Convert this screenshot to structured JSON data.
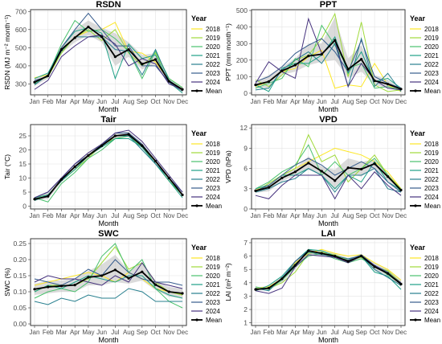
{
  "colors": {
    "2018": "#FDE725",
    "2019": "#9FDA3A",
    "2020": "#4AC16D",
    "2021": "#1FA187",
    "2022": "#277F8E",
    "2023": "#365C8D",
    "2024": "#46327E",
    "mean": "#000000",
    "band": "#BEBEBE"
  },
  "chart_data": [
    {
      "type": "line",
      "title": "RSDN",
      "xlabel": "Month",
      "ylabel": "RSDN (MJ m⁻² month⁻¹)",
      "categories": [
        "Jan",
        "Feb",
        "Mar",
        "Apr",
        "May",
        "Jun",
        "Jul",
        "Aug",
        "Sep",
        "Oct",
        "Nov",
        "Dec"
      ],
      "ylim": [
        240,
        710
      ],
      "yticks": [
        300,
        400,
        500,
        600,
        700
      ],
      "legend_title": "Year",
      "series": [
        {
          "name": "2018",
          "values": [
            335,
            350,
            480,
            560,
            590,
            600,
            640,
            480,
            470,
            420,
            320,
            260
          ]
        },
        {
          "name": "2019",
          "values": [
            310,
            340,
            470,
            560,
            600,
            540,
            600,
            470,
            400,
            470,
            330,
            280
          ]
        },
        {
          "name": "2020",
          "values": [
            300,
            350,
            520,
            650,
            590,
            600,
            550,
            480,
            330,
            480,
            330,
            280
          ]
        },
        {
          "name": "2021",
          "values": [
            330,
            360,
            500,
            590,
            610,
            580,
            330,
            520,
            440,
            460,
            310,
            250
          ]
        },
        {
          "name": "2022",
          "values": [
            295,
            350,
            480,
            560,
            560,
            560,
            490,
            480,
            350,
            490,
            320,
            270
          ]
        },
        {
          "name": "2023",
          "values": [
            320,
            340,
            500,
            600,
            690,
            600,
            510,
            510,
            400,
            400,
            310,
            260
          ]
        },
        {
          "name": "2024",
          "values": [
            270,
            320,
            450,
            510,
            560,
            570,
            520,
            400,
            440,
            410,
            300,
            270
          ]
        },
        {
          "name": "Mean",
          "values": [
            310,
            345,
            490,
            555,
            615,
            560,
            450,
            490,
            410,
            435,
            315,
            270
          ],
          "lower": [
            290,
            330,
            470,
            530,
            570,
            530,
            400,
            450,
            380,
            410,
            305,
            260
          ],
          "upper": [
            330,
            360,
            510,
            600,
            650,
            610,
            580,
            530,
            460,
            470,
            325,
            285
          ]
        }
      ]
    },
    {
      "type": "line",
      "title": "PPT",
      "xlabel": "Month",
      "ylabel": "PPT (mm month⁻¹)",
      "categories": [
        "Jan",
        "Feb",
        "Mar",
        "Apr",
        "May",
        "Jun",
        "Jul",
        "Aug",
        "Sep",
        "Oct",
        "Nov",
        "Dec"
      ],
      "ylim": [
        -10,
        505
      ],
      "yticks": [
        0,
        100,
        200,
        300,
        400,
        500
      ],
      "legend_title": "Year",
      "series": [
        {
          "name": "2018",
          "values": [
            40,
            70,
            130,
            150,
            220,
            260,
            30,
            50,
            40,
            180,
            50,
            10
          ]
        },
        {
          "name": "2019",
          "values": [
            80,
            40,
            110,
            200,
            230,
            330,
            480,
            100,
            430,
            50,
            10,
            20
          ]
        },
        {
          "name": "2020",
          "values": [
            30,
            60,
            90,
            210,
            160,
            410,
            290,
            150,
            180,
            30,
            40,
            20
          ]
        },
        {
          "name": "2021",
          "values": [
            50,
            10,
            150,
            180,
            180,
            230,
            340,
            120,
            250,
            70,
            90,
            30
          ]
        },
        {
          "name": "2022",
          "values": [
            20,
            30,
            140,
            200,
            250,
            180,
            300,
            40,
            330,
            40,
            120,
            10
          ]
        },
        {
          "name": "2023",
          "values": [
            70,
            100,
            160,
            240,
            290,
            330,
            250,
            130,
            320,
            100,
            60,
            30
          ]
        },
        {
          "name": "2024",
          "values": [
            60,
            190,
            130,
            90,
            450,
            240,
            320,
            40,
            180,
            80,
            30,
            20
          ]
        },
        {
          "name": "Mean",
          "values": [
            50,
            70,
            135,
            170,
            225,
            235,
            320,
            145,
            205,
            75,
            55,
            25
          ],
          "lower": [
            30,
            30,
            110,
            130,
            170,
            190,
            200,
            90,
            130,
            50,
            30,
            15
          ],
          "upper": [
            70,
            110,
            160,
            210,
            300,
            300,
            460,
            210,
            290,
            110,
            80,
            35
          ]
        }
      ]
    },
    {
      "type": "line",
      "title": "Tair",
      "xlabel": "Month",
      "ylabel": "Tair (°C)",
      "categories": [
        "Jan",
        "Feb",
        "Mar",
        "Apr",
        "May",
        "Jun",
        "Jul",
        "Aug",
        "Sep",
        "Oct",
        "Nov",
        "Dec"
      ],
      "ylim": [
        -1,
        29
      ],
      "yticks": [
        0,
        5,
        10,
        15,
        20,
        25
      ],
      "legend_title": "Year",
      "series": [
        {
          "name": "2018",
          "values": [
            3,
            4,
            9,
            14,
            18,
            22,
            25,
            25,
            21,
            16,
            10,
            4
          ]
        },
        {
          "name": "2019",
          "values": [
            2,
            4,
            9,
            13,
            17,
            22,
            24,
            25,
            21,
            15,
            9,
            4
          ]
        },
        {
          "name": "2020",
          "values": [
            3,
            1.5,
            8,
            12,
            17,
            20,
            24,
            25,
            21,
            15,
            9,
            4
          ]
        },
        {
          "name": "2021",
          "values": [
            3,
            4,
            9,
            13,
            18,
            21,
            24,
            24,
            21,
            15,
            9,
            3
          ]
        },
        {
          "name": "2022",
          "values": [
            2,
            4,
            9,
            14,
            18,
            22,
            25,
            25,
            20,
            15,
            10,
            4
          ]
        },
        {
          "name": "2023",
          "values": [
            3,
            5,
            10,
            15,
            18,
            22,
            26,
            26,
            22,
            16,
            10,
            5
          ]
        },
        {
          "name": "2024",
          "values": [
            3,
            5,
            10,
            15,
            19,
            22,
            26,
            27,
            23,
            17,
            11,
            5
          ]
        },
        {
          "name": "Mean",
          "values": [
            2.5,
            3.5,
            9.5,
            14,
            18,
            21.5,
            25,
            25.5,
            21.5,
            16,
            10,
            4
          ],
          "lower": [
            2,
            2.5,
            8.5,
            13,
            17,
            21,
            24,
            24.5,
            20.5,
            15,
            9,
            3.5
          ],
          "upper": [
            3,
            5,
            10,
            15,
            19,
            22.5,
            26,
            26.5,
            22.5,
            17,
            11,
            5
          ]
        }
      ]
    },
    {
      "type": "line",
      "title": "VPD",
      "xlabel": "Month",
      "ylabel": "VPD (hPa)",
      "categories": [
        "Jan",
        "Feb",
        "Mar",
        "Apr",
        "May",
        "Jun",
        "Jul",
        "Aug",
        "Sep",
        "Oct",
        "Nov",
        "Dec"
      ],
      "ylim": [
        0,
        12.5
      ],
      "yticks": [
        0,
        3,
        6,
        9,
        12
      ],
      "legend_title": "Year",
      "series": [
        {
          "name": "2018",
          "values": [
            2.8,
            3.5,
            5,
            6,
            7,
            8,
            9,
            8.5,
            8,
            7,
            5.5,
            3
          ]
        },
        {
          "name": "2019",
          "values": [
            2.5,
            3.8,
            5,
            6,
            11,
            7,
            8,
            4,
            6,
            8,
            5,
            3
          ]
        },
        {
          "name": "2020",
          "values": [
            3,
            4,
            5.5,
            6.5,
            9.5,
            5,
            7,
            5,
            6,
            7.5,
            5,
            2.5
          ]
        },
        {
          "name": "2021",
          "values": [
            3,
            3.5,
            5,
            5,
            6,
            5,
            3,
            5,
            4,
            7,
            4,
            2.8
          ]
        },
        {
          "name": "2022",
          "values": [
            2.5,
            3,
            4,
            4.5,
            6,
            5,
            2.5,
            5,
            5,
            6,
            3,
            2.5
          ]
        },
        {
          "name": "2023",
          "values": [
            2.7,
            3.5,
            5,
            6.5,
            7.5,
            6.5,
            5,
            6,
            7,
            6,
            4,
            2.5
          ]
        },
        {
          "name": "2024",
          "values": [
            2,
            1.5,
            3.5,
            5,
            5,
            5,
            1.5,
            5,
            3,
            5.5,
            3.5,
            2
          ]
        },
        {
          "name": "Mean",
          "values": [
            2.7,
            3.2,
            4.6,
            5.5,
            6.8,
            5.6,
            4.2,
            6.1,
            5.9,
            6.7,
            4.8,
            2.8
          ],
          "lower": [
            2.4,
            2.6,
            4.1,
            5,
            5.8,
            5,
            2.8,
            5.2,
            4.8,
            6.1,
            4.2,
            2.5
          ],
          "upper": [
            3,
            3.8,
            5.1,
            6,
            7.8,
            6.3,
            5.8,
            7.5,
            7,
            7.3,
            5.3,
            3.1
          ]
        }
      ]
    },
    {
      "type": "line",
      "title": "SWC",
      "xlabel": "Month",
      "ylabel": "SWC (%)",
      "categories": [
        "Jan",
        "Feb",
        "Mar",
        "Apr",
        "May",
        "Jun",
        "Jul",
        "Aug",
        "Sep",
        "Oct",
        "Nov",
        "Dec"
      ],
      "ylim": [
        -0.005,
        0.265
      ],
      "yticks": [
        0.0,
        0.05,
        0.1,
        0.15,
        0.2,
        0.25
      ],
      "yformat": 2,
      "legend_title": "Year",
      "series": [
        {
          "name": "2018",
          "values": [
            0.12,
            0.13,
            0.14,
            0.15,
            0.16,
            0.15,
            0.13,
            0.16,
            0.14,
            0.11,
            0.1,
            0.09
          ]
        },
        {
          "name": "2019",
          "values": [
            0.1,
            0.12,
            0.12,
            0.12,
            0.14,
            0.19,
            0.24,
            0.17,
            0.19,
            0.13,
            0.1,
            0.09
          ]
        },
        {
          "name": "2020",
          "values": [
            0.08,
            0.1,
            0.11,
            0.1,
            0.13,
            0.21,
            0.25,
            0.16,
            0.2,
            0.11,
            0.07,
            0.05
          ]
        },
        {
          "name": "2021",
          "values": [
            0.1,
            0.12,
            0.11,
            0.13,
            0.15,
            0.14,
            0.13,
            0.15,
            0.15,
            0.11,
            0.09,
            0.08
          ]
        },
        {
          "name": "2022",
          "values": [
            0.07,
            0.06,
            0.08,
            0.07,
            0.09,
            0.08,
            0.08,
            0.11,
            0.1,
            0.07,
            0.07,
            0.07
          ]
        },
        {
          "name": "2023",
          "values": [
            0.14,
            0.13,
            0.12,
            0.14,
            0.17,
            0.15,
            0.2,
            0.16,
            0.14,
            0.13,
            0.13,
            0.12
          ]
        },
        {
          "name": "2024",
          "values": [
            0.13,
            0.15,
            0.14,
            0.14,
            0.13,
            0.12,
            0.15,
            0.13,
            0.19,
            0.13,
            0.12,
            0.11
          ]
        },
        {
          "name": "Mean",
          "values": [
            0.108,
            0.115,
            0.118,
            0.121,
            0.145,
            0.15,
            0.168,
            0.142,
            0.162,
            0.122,
            0.1,
            0.095
          ],
          "lower": [
            0.09,
            0.095,
            0.1,
            0.1,
            0.12,
            0.12,
            0.13,
            0.125,
            0.135,
            0.105,
            0.085,
            0.08
          ],
          "upper": [
            0.125,
            0.135,
            0.135,
            0.14,
            0.165,
            0.185,
            0.215,
            0.165,
            0.19,
            0.135,
            0.115,
            0.11
          ]
        }
      ]
    },
    {
      "type": "line",
      "title": "LAI",
      "xlabel": "Month",
      "ylabel": "LAI (m² m⁻²)",
      "categories": [
        "Jan",
        "Feb",
        "Mar",
        "Apr",
        "May",
        "Jun",
        "Jul",
        "Aug",
        "Sep",
        "Oct",
        "Nov",
        "Dec"
      ],
      "ylim": [
        0.8,
        7.3
      ],
      "yticks": [
        1,
        2,
        3,
        4,
        5,
        6,
        7
      ],
      "legend_title": "Year",
      "series": [
        {
          "name": "2018",
          "values": [
            3.6,
            3.7,
            4.3,
            5.5,
            6.2,
            6.5,
            6.2,
            6.0,
            6.1,
            5.5,
            5.0,
            4.2
          ]
        },
        {
          "name": "2019",
          "values": [
            3.5,
            3.6,
            4.0,
            4.8,
            6.2,
            6.3,
            6.1,
            5.7,
            5.9,
            5.2,
            4.9,
            4.0
          ]
        },
        {
          "name": "2020",
          "values": [
            3.7,
            3.5,
            4.2,
            5.2,
            6.0,
            6.2,
            5.8,
            5.5,
            5.8,
            5.3,
            4.6,
            3.9
          ]
        },
        {
          "name": "2021",
          "values": [
            3.4,
            3.8,
            4.5,
            5.6,
            6.5,
            6.4,
            6.0,
            5.6,
            6.0,
            4.8,
            4.5,
            3.5
          ]
        },
        {
          "name": "2022",
          "values": [
            3.6,
            3.4,
            4.4,
            5.4,
            6.3,
            6.1,
            6.0,
            5.8,
            6.0,
            5.0,
            4.4,
            3.8
          ]
        },
        {
          "name": "2023",
          "values": [
            3.5,
            3.6,
            4.3,
            5.6,
            6.4,
            6.2,
            5.9,
            5.7,
            6.1,
            5.3,
            4.8,
            3.9
          ]
        },
        {
          "name": "2024",
          "values": [
            3.4,
            3.2,
            3.6,
            5.2,
            6.1,
            6.0,
            5.9,
            5.5,
            6.0,
            5.3,
            4.7,
            4.0
          ]
        },
        {
          "name": "Mean",
          "values": [
            3.5,
            3.6,
            4.3,
            5.3,
            6.4,
            6.2,
            6.0,
            5.6,
            6.0,
            5.2,
            4.7,
            3.9
          ],
          "lower": [
            3.4,
            3.45,
            4.0,
            5.0,
            6.1,
            6.0,
            5.85,
            5.45,
            5.85,
            4.9,
            4.5,
            3.7
          ],
          "upper": [
            3.65,
            3.75,
            4.5,
            5.6,
            6.5,
            6.45,
            6.2,
            5.85,
            6.1,
            5.5,
            5.0,
            4.2
          ]
        }
      ]
    }
  ]
}
